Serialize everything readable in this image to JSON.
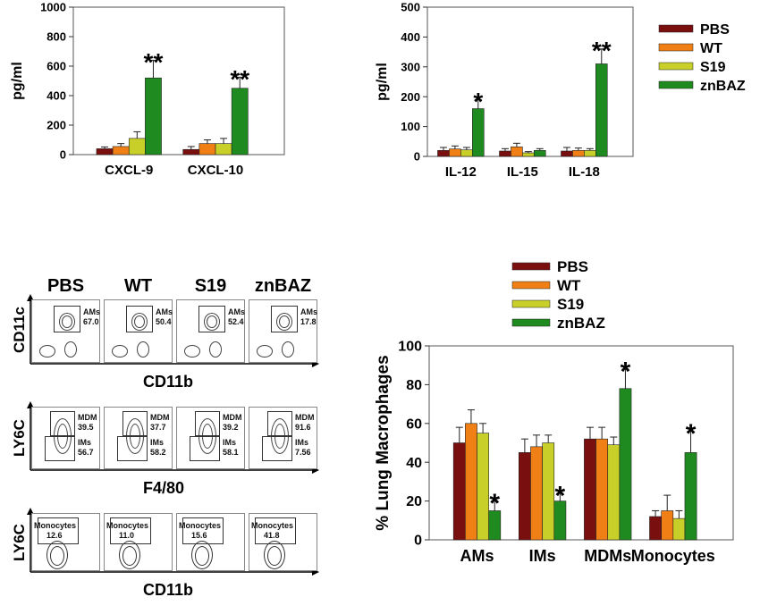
{
  "colors": {
    "PBS": "#7a0f0f",
    "WT": "#f07f16",
    "S19": "#c8cf28",
    "znBAZ": "#1f8a1f"
  },
  "legend_top": [
    "PBS",
    "WT",
    "S19",
    "znBAZ"
  ],
  "legend_bottom": [
    "PBS",
    "WT",
    "S19",
    "znBAZ"
  ],
  "chart_data": [
    {
      "type": "bar",
      "ylabel": "pg/ml",
      "ylim": [
        0,
        1000
      ],
      "yticks": [
        "0",
        "200",
        "400",
        "600",
        "800",
        "1000"
      ],
      "categories": [
        "CXCL-9",
        "CXCL-10"
      ],
      "series": [
        {
          "name": "PBS",
          "values": [
            40,
            35
          ],
          "err": [
            12,
            20
          ]
        },
        {
          "name": "WT",
          "values": [
            55,
            75
          ],
          "err": [
            20,
            25
          ]
        },
        {
          "name": "S19",
          "values": [
            110,
            75
          ],
          "err": [
            45,
            35
          ]
        },
        {
          "name": "znBAZ",
          "values": [
            520,
            450
          ],
          "err": [
            120,
            75
          ]
        }
      ],
      "annotations": [
        {
          "category": "CXCL-9",
          "text": "**"
        },
        {
          "category": "CXCL-10",
          "text": "**"
        }
      ]
    },
    {
      "type": "bar",
      "ylabel": "pg/ml",
      "ylim": [
        0,
        500
      ],
      "yticks": [
        "0",
        "100",
        "200",
        "300",
        "400",
        "500"
      ],
      "categories": [
        "IL-12",
        "IL-15",
        "IL-18"
      ],
      "series": [
        {
          "name": "PBS",
          "values": [
            20,
            18,
            18
          ],
          "err": [
            10,
            8,
            12
          ]
        },
        {
          "name": "WT",
          "values": [
            25,
            32,
            20
          ],
          "err": [
            10,
            12,
            8
          ]
        },
        {
          "name": "S19",
          "values": [
            22,
            12,
            20
          ],
          "err": [
            8,
            4,
            6
          ]
        },
        {
          "name": "znBAZ",
          "values": [
            160,
            20,
            310
          ],
          "err": [
            30,
            6,
            50
          ]
        }
      ],
      "annotations": [
        {
          "category": "IL-12",
          "text": "*"
        },
        {
          "category": "IL-18",
          "text": "**"
        }
      ]
    },
    {
      "type": "bar",
      "ylabel": "% Lung Macrophages",
      "ylim": [
        0,
        100
      ],
      "yticks": [
        "0",
        "20",
        "40",
        "60",
        "80",
        "100"
      ],
      "categories": [
        "AMs",
        "IMs",
        "MDMs",
        "Monocytes"
      ],
      "series": [
        {
          "name": "PBS",
          "values": [
            50,
            45,
            52,
            12
          ],
          "err": [
            8,
            7,
            6,
            3
          ]
        },
        {
          "name": "WT",
          "values": [
            60,
            48,
            52,
            15
          ],
          "err": [
            7,
            6,
            6,
            8
          ]
        },
        {
          "name": "S19",
          "values": [
            55,
            50,
            49,
            11
          ],
          "err": [
            5,
            4,
            4,
            4
          ]
        },
        {
          "name": "znBAZ",
          "values": [
            15,
            20,
            78,
            45
          ],
          "err": [
            5,
            4,
            10,
            11
          ]
        }
      ],
      "annotations": [
        {
          "category": "AMs",
          "text": "*"
        },
        {
          "category": "IMs",
          "text": "*"
        },
        {
          "category": "MDMs",
          "text": "*"
        },
        {
          "category": "Monocytes",
          "text": "*"
        }
      ]
    }
  ],
  "facs": {
    "columns": [
      "PBS",
      "WT",
      "S19",
      "znBAZ"
    ],
    "rows": [
      {
        "ylabel": "CD11c",
        "xlabel": "CD11b",
        "gate_label": "AMs",
        "values": [
          "67.0",
          "50.4",
          "52.4",
          "17.8"
        ]
      },
      {
        "ylabel": "LY6C",
        "xlabel": "F4/80",
        "gate_label": "MDM",
        "values": [
          "39.5",
          "37.7",
          "39.2",
          "91.6"
        ],
        "gate2_label": "IMs",
        "values2": [
          "56.7",
          "58.2",
          "58.1",
          "7.56"
        ]
      },
      {
        "ylabel": "LY6C",
        "xlabel": "CD11b",
        "gate_label": "Monocytes",
        "values": [
          "12.6",
          "11.0",
          "15.6",
          "41.8"
        ]
      }
    ]
  }
}
